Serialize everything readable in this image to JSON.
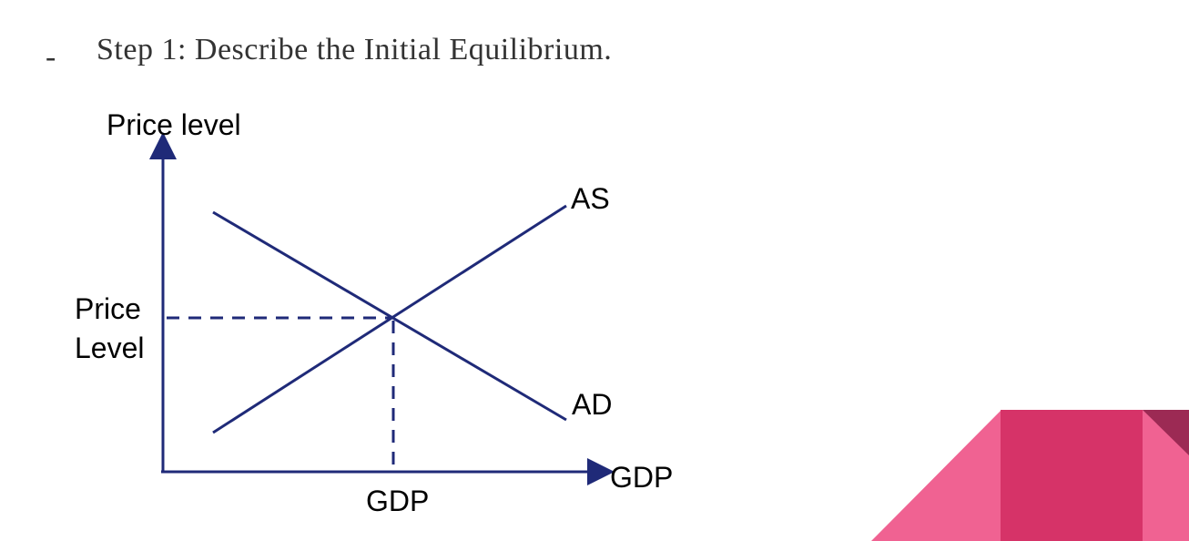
{
  "bullet": {
    "marker": "-",
    "text": "Step 1: Describe the Initial Equilibrium."
  },
  "diagram": {
    "y_axis_label": "Price level",
    "x_axis_label": "GDP",
    "supply_curve_label": "AS",
    "demand_curve_label": "AD",
    "equilibrium_price_label_line1": "Price",
    "equilibrium_price_label_line2": "Level",
    "equilibrium_quantity_label": "GDP",
    "line_color": "#1f2a78"
  },
  "decoration": {
    "colors": [
      "#f06292",
      "#d63368",
      "#9c2a54"
    ]
  }
}
